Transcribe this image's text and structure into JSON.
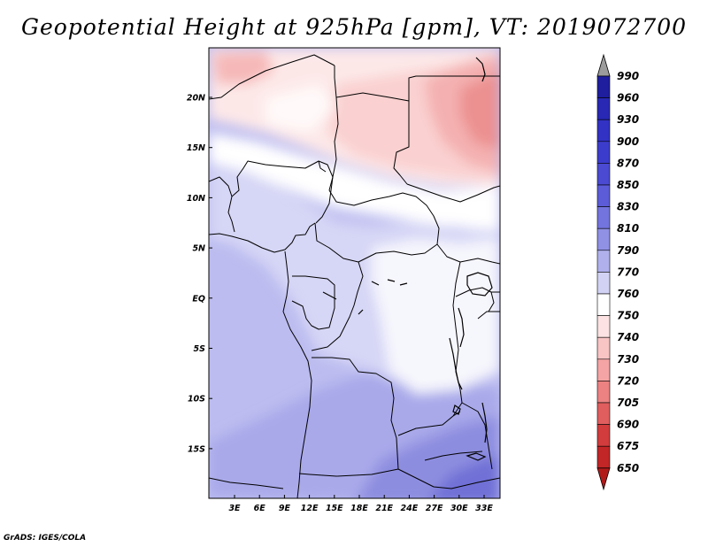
{
  "title": "Geopotential Height at 925hPa [gpm], VT: 2019072700",
  "credit": "GrADS: IGES/COLA",
  "map": {
    "lat_labels": [
      "20N",
      "15N",
      "10N",
      "5N",
      "EQ",
      "5S",
      "10S",
      "15S"
    ],
    "lon_labels": [
      "3E",
      "6E",
      "9E",
      "12E",
      "15E",
      "18E",
      "21E",
      "24E",
      "27E",
      "30E",
      "33E"
    ]
  },
  "colorbar": {
    "levels": [
      "990",
      "960",
      "930",
      "900",
      "870",
      "850",
      "830",
      "810",
      "790",
      "770",
      "760",
      "750",
      "740",
      "730",
      "720",
      "705",
      "690",
      "675",
      "650"
    ],
    "colors": [
      "#1e1e9e",
      "#2828b4",
      "#3232c4",
      "#3c3ccc",
      "#4a4ad2",
      "#5c5cd8",
      "#7474de",
      "#9090e4",
      "#b0b0ec",
      "#d2d2f4",
      "#ffffff",
      "#fce2e2",
      "#f8c4c4",
      "#f4a4a4",
      "#ec8282",
      "#e05e5e",
      "#d23c3c",
      "#c22626",
      "#b41414"
    ],
    "over_color": "#9c9c9c",
    "under_color": "#b21a1a"
  }
}
